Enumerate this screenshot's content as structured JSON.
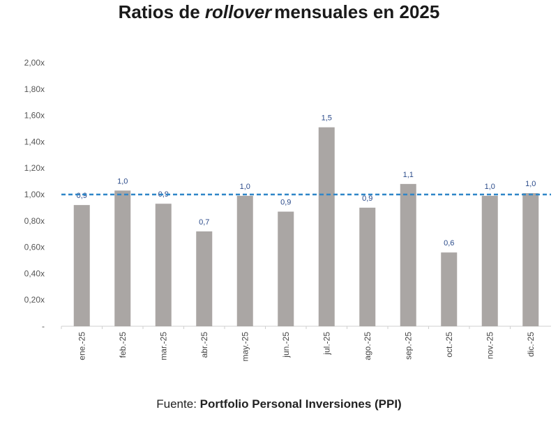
{
  "chart_data": {
    "type": "bar",
    "title_prefix": "Ratios de",
    "title_italic": "rollover",
    "title_suffix": "mensuales en 2025",
    "categories": [
      "ene.-25",
      "feb.-25",
      "mar.-25",
      "abr.-25",
      "may.-25",
      "jun.-25",
      "jul.-25",
      "ago.-25",
      "sep.-25",
      "oct.-25",
      "nov.-25",
      "dic.-25"
    ],
    "values": [
      0.92,
      1.03,
      0.93,
      0.72,
      0.99,
      0.87,
      1.51,
      0.9,
      1.08,
      0.56,
      0.99,
      1.01
    ],
    "data_labels": [
      "0,9",
      "1,0",
      "0,9",
      "0,7",
      "1,0",
      "0,9",
      "1,5",
      "0,9",
      "1,1",
      "0,6",
      "1,0",
      "1,0"
    ],
    "ylim": [
      0,
      2.0
    ],
    "yticks": [
      0,
      0.2,
      0.4,
      0.6,
      0.8,
      1.0,
      1.2,
      1.4,
      1.6,
      1.8,
      2.0
    ],
    "ytick_labels": [
      "-",
      "0,20x",
      "0,40x",
      "0,60x",
      "0,80x",
      "1,00x",
      "1,20x",
      "1,40x",
      "1,60x",
      "1,80x",
      "2,00x"
    ],
    "reference_line": 1.0,
    "colors": {
      "bar": "#aaa6a4",
      "reference": "#2f86c8",
      "data_label": "#2a4a8a"
    }
  },
  "source": {
    "prefix": "Fuente:",
    "name": "Portfolio Personal Inversiones (PPI)"
  }
}
